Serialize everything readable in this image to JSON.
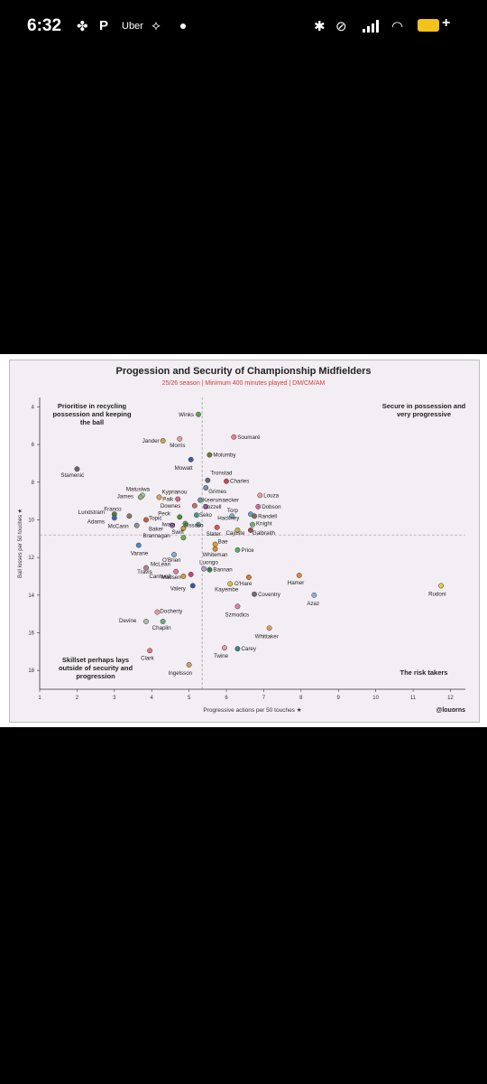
{
  "status_bar": {
    "time": "6:32",
    "app_label": "Uber",
    "battery_color": "#f3c21b"
  },
  "chart_data": {
    "type": "scatter",
    "title": "Progession and Security of Championship Midfielders",
    "subtitle": "25/26 season | Minimum 400 minutes played | DM/CM/AM",
    "xlabel": "Progressive actions per 50 touches",
    "ylabel": "Ball losses per 50 touches",
    "xlim": [
      1,
      12.4
    ],
    "ylim": [
      3.5,
      19
    ],
    "y_inverted": true,
    "xticks": [
      1,
      2,
      3,
      4,
      5,
      6,
      7,
      8,
      9,
      10,
      11,
      12
    ],
    "yticks": [
      4,
      6,
      8,
      10,
      12,
      14,
      16,
      18
    ],
    "reference_lines": {
      "x": 5.35,
      "y": 10.8
    },
    "credit": "@louorns",
    "quadrant_labels": [
      {
        "position": "top-left",
        "text": "Prioritise in recycling possession and keeping the ball"
      },
      {
        "position": "top-right",
        "text": "Secure in possession and very progressive"
      },
      {
        "position": "bottom-left",
        "text": "Skillset perhaps lays outside of security and progression"
      },
      {
        "position": "bottom-right",
        "text": "The risk takers"
      }
    ],
    "points": [
      {
        "name": "Winks",
        "x": 5.25,
        "y": 4.4,
        "color": "#5aa35a"
      },
      {
        "name": "Soumaré",
        "x": 6.2,
        "y": 5.6,
        "color": "#e87f8f"
      },
      {
        "name": "Jander",
        "x": 4.3,
        "y": 5.8,
        "color": "#d4a24a"
      },
      {
        "name": "Morris",
        "x": 4.75,
        "y": 5.7,
        "color": "#d9a6a6"
      },
      {
        "name": "Molumby",
        "x": 5.55,
        "y": 6.55,
        "color": "#6b7b3a"
      },
      {
        "name": "Mowatt",
        "x": 5.05,
        "y": 6.8,
        "color": "#3a5a9a"
      },
      {
        "name": "Stamenić",
        "x": 2.0,
        "y": 7.3,
        "color": "#666666"
      },
      {
        "name": "Tronstad",
        "x": 5.5,
        "y": 7.9,
        "color": "#5a6a8a"
      },
      {
        "name": "Charles",
        "x": 6.0,
        "y": 7.95,
        "color": "#c94b4b"
      },
      {
        "name": "Grimes",
        "x": 5.45,
        "y": 8.3,
        "color": "#7a8ab0"
      },
      {
        "name": "Matusiwa",
        "x": 3.75,
        "y": 8.7,
        "color": "#a5c98a"
      },
      {
        "name": "Kyprianou",
        "x": 4.2,
        "y": 8.8,
        "color": "#e0a060"
      },
      {
        "name": "James",
        "x": 3.7,
        "y": 8.8,
        "color": "#9ab07a"
      },
      {
        "name": "Paik",
        "x": 4.7,
        "y": 8.9,
        "color": "#d46a8a"
      },
      {
        "name": "Louza",
        "x": 6.9,
        "y": 8.7,
        "color": "#e89aa8"
      },
      {
        "name": "Keersmaecker",
        "x": 5.3,
        "y": 8.95,
        "color": "#6a9a9a"
      },
      {
        "name": "Downes",
        "x": 5.15,
        "y": 9.25,
        "color": "#c07070"
      },
      {
        "name": "Dozzell",
        "x": 5.45,
        "y": 9.3,
        "color": "#b070b0"
      },
      {
        "name": "Dobson",
        "x": 6.85,
        "y": 9.3,
        "color": "#d06aa0"
      },
      {
        "name": "Torp",
        "x": 6.65,
        "y": 9.7,
        "color": "#6aa0d0"
      },
      {
        "name": "Randell",
        "x": 6.75,
        "y": 9.8,
        "color": "#8a6a4a"
      },
      {
        "name": "Franco",
        "x": 3.4,
        "y": 9.8,
        "color": "#8a7a5a"
      },
      {
        "name": "Lundstram",
        "x": 3.0,
        "y": 9.7,
        "color": "#5a7a3a"
      },
      {
        "name": "Peck",
        "x": 4.75,
        "y": 9.85,
        "color": "#4a8a4a"
      },
      {
        "name": "Seko",
        "x": 5.2,
        "y": 9.75,
        "color": "#4a9a7a"
      },
      {
        "name": "Topić",
        "x": 3.85,
        "y": 10.0,
        "color": "#c06040"
      },
      {
        "name": "Adams",
        "x": 3.0,
        "y": 9.9,
        "color": "#3a6ab0"
      },
      {
        "name": "Hackney",
        "x": 6.15,
        "y": 9.8,
        "color": "#7ab0d0"
      },
      {
        "name": "McCann",
        "x": 3.6,
        "y": 10.3,
        "color": "#909090"
      },
      {
        "name": "Iwata",
        "x": 4.9,
        "y": 10.2,
        "color": "#5aa35a"
      },
      {
        "name": "Sissoko",
        "x": 5.25,
        "y": 10.25,
        "color": "#80b0a0"
      },
      {
        "name": "Knight",
        "x": 6.7,
        "y": 10.25,
        "color": "#7ab07a"
      },
      {
        "name": "Baker",
        "x": 4.55,
        "y": 10.3,
        "color": "#a070c0"
      },
      {
        "name": "Swift",
        "x": 4.85,
        "y": 10.45,
        "color": "#c0a040"
      },
      {
        "name": "Slater",
        "x": 5.75,
        "y": 10.4,
        "color": "#e05050"
      },
      {
        "name": "Cajuste",
        "x": 6.3,
        "y": 10.55,
        "color": "#d0b050"
      },
      {
        "name": "Galbraith",
        "x": 6.65,
        "y": 10.55,
        "color": "#a05050"
      },
      {
        "name": "Brannagan",
        "x": 4.85,
        "y": 10.95,
        "color": "#6ab04a"
      },
      {
        "name": "Bae",
        "x": 5.7,
        "y": 11.3,
        "color": "#e0a030"
      },
      {
        "name": "Whiteman",
        "x": 5.7,
        "y": 11.55,
        "color": "#d09030"
      },
      {
        "name": "Price",
        "x": 6.3,
        "y": 11.6,
        "color": "#50b070"
      },
      {
        "name": "Varane",
        "x": 3.65,
        "y": 11.35,
        "color": "#4a8ac0"
      },
      {
        "name": "O'Brien",
        "x": 4.6,
        "y": 11.85,
        "color": "#80b0d0"
      },
      {
        "name": "McLean",
        "x": 3.85,
        "y": 12.55,
        "color": "#b08090"
      },
      {
        "name": "Luongo",
        "x": 5.4,
        "y": 12.6,
        "color": "#b0a0c0"
      },
      {
        "name": "Bannan",
        "x": 5.55,
        "y": 12.65,
        "color": "#3a7a4a"
      },
      {
        "name": "Travis",
        "x": 4.65,
        "y": 12.75,
        "color": "#e07a9a"
      },
      {
        "name": "Cantwell",
        "x": 4.85,
        "y": 13.0,
        "color": "#d0a040"
      },
      {
        "name": "O'Hare",
        "x": 6.6,
        "y": 13.05,
        "color": "#e07a30"
      },
      {
        "name": "Hamer",
        "x": 7.95,
        "y": 12.95,
        "color": "#e08a40"
      },
      {
        "name": "Madsen",
        "x": 5.05,
        "y": 12.9,
        "color": "#c04a7a"
      },
      {
        "name": "Kayembe",
        "x": 6.1,
        "y": 13.4,
        "color": "#e0c040"
      },
      {
        "name": "Valery",
        "x": 5.1,
        "y": 13.5,
        "color": "#3a5a9a"
      },
      {
        "name": "Rudoni",
        "x": 11.75,
        "y": 13.5,
        "color": "#e0d040"
      },
      {
        "name": "Coventry",
        "x": 6.75,
        "y": 13.95,
        "color": "#707070"
      },
      {
        "name": "Azaz",
        "x": 8.35,
        "y": 14.0,
        "color": "#8ab0e0"
      },
      {
        "name": "Szmodics",
        "x": 6.3,
        "y": 14.6,
        "color": "#e080a0"
      },
      {
        "name": "Docherty",
        "x": 4.15,
        "y": 14.9,
        "color": "#e0a0b0"
      },
      {
        "name": "Devine",
        "x": 3.85,
        "y": 15.4,
        "color": "#b0c0b0"
      },
      {
        "name": "Chaplin",
        "x": 4.3,
        "y": 15.4,
        "color": "#6ab08a"
      },
      {
        "name": "Whittaker",
        "x": 7.15,
        "y": 15.75,
        "color": "#e0a060"
      },
      {
        "name": "Twine",
        "x": 5.95,
        "y": 16.8,
        "color": "#e0a0a0"
      },
      {
        "name": "Carey",
        "x": 6.3,
        "y": 16.85,
        "color": "#3a8a8a"
      },
      {
        "name": "Clark",
        "x": 3.95,
        "y": 16.95,
        "color": "#e07a8a"
      },
      {
        "name": "Ingelsson",
        "x": 5.0,
        "y": 17.7,
        "color": "#d0a060"
      }
    ]
  }
}
